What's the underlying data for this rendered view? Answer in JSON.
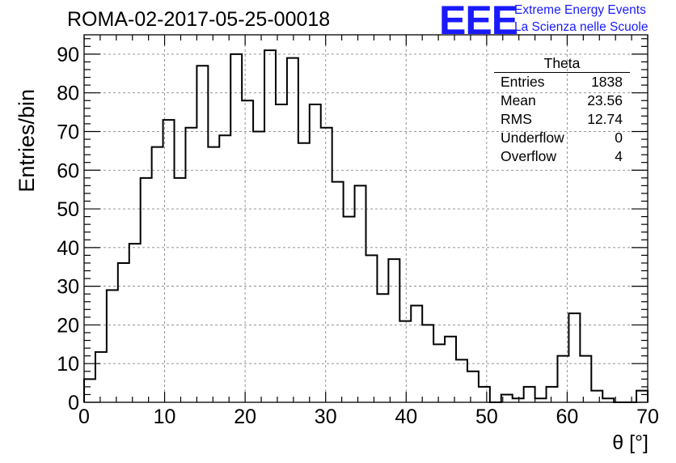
{
  "title": "ROMA-02-2017-05-25-00018",
  "logo": {
    "text": "EEE",
    "line1": "Extreme Energy Events",
    "line2": "La Scienza nelle Scuole",
    "color": "#1a1aff"
  },
  "stats_box": {
    "title": "Theta",
    "rows": [
      {
        "label": "Entries",
        "value": "1838"
      },
      {
        "label": "Mean",
        "value": "23.56"
      },
      {
        "label": "RMS",
        "value": "12.74"
      },
      {
        "label": "Underflow",
        "value": "0"
      },
      {
        "label": "Overflow",
        "value": "4"
      }
    ]
  },
  "chart_data": {
    "type": "histogram",
    "title": "ROMA-02-2017-05-25-00018",
    "xlabel": "θ [°]",
    "ylabel": "Entries/bin",
    "xlim": [
      0,
      70
    ],
    "ylim": [
      0,
      95
    ],
    "bin_width": 1.4,
    "x_ticks": [
      0,
      10,
      20,
      30,
      40,
      50,
      60,
      70
    ],
    "y_ticks": [
      0,
      10,
      20,
      30,
      40,
      50,
      60,
      70,
      80,
      90
    ],
    "grid": true,
    "values": [
      6,
      13,
      29,
      36,
      41,
      58,
      66,
      73,
      58,
      71,
      87,
      66,
      69,
      90,
      78,
      70,
      91,
      77,
      89,
      67,
      77,
      71,
      57,
      48,
      56,
      38,
      28,
      37,
      21,
      25,
      20,
      15,
      17,
      11,
      8,
      4,
      0,
      2,
      1,
      4,
      1,
      4,
      12,
      23,
      12,
      3,
      1,
      0,
      0,
      3
    ]
  }
}
